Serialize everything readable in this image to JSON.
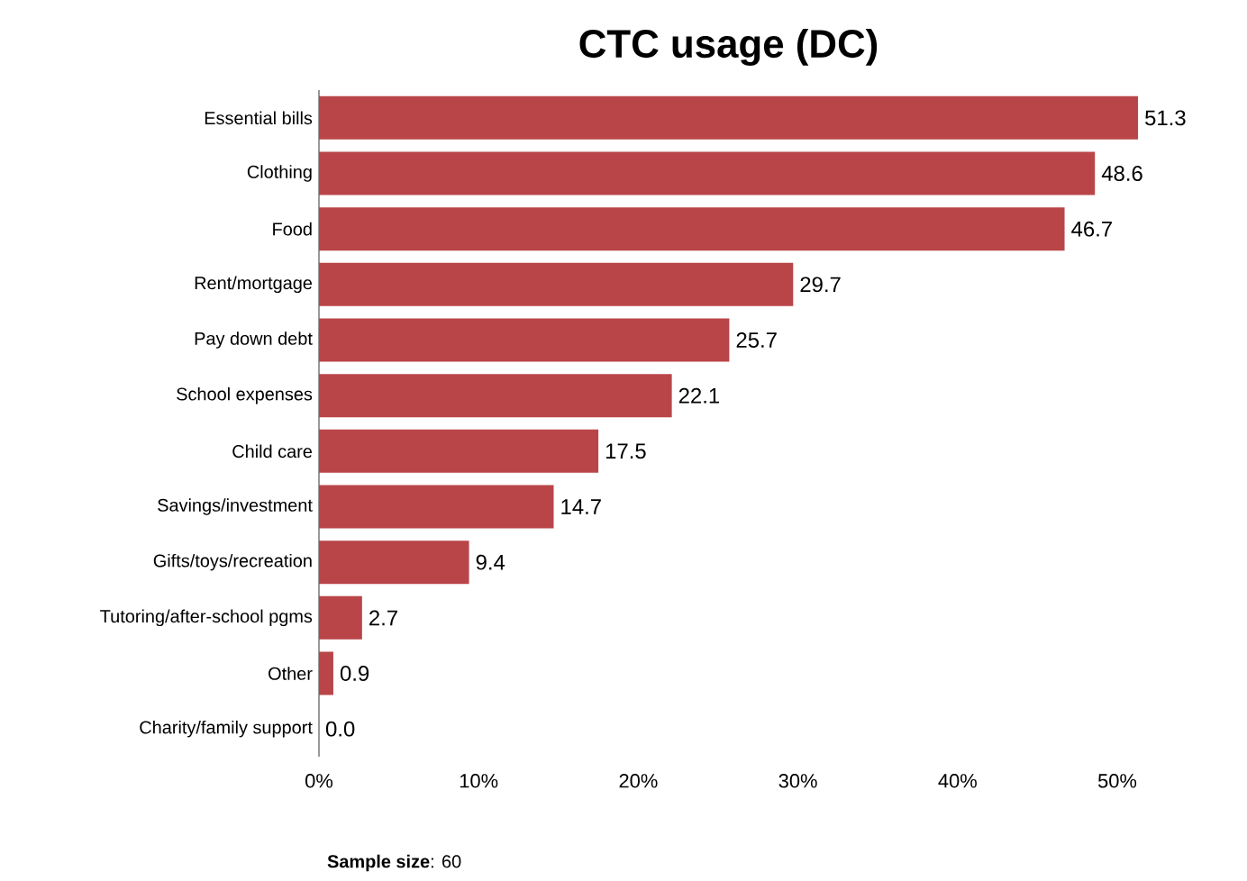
{
  "chart_data": {
    "type": "bar",
    "orientation": "horizontal",
    "title": "CTC usage (DC)",
    "categories": [
      "Essential bills",
      "Clothing",
      "Food",
      "Rent/mortgage",
      "Pay down debt",
      "School expenses",
      "Child care",
      "Savings/investment",
      "Gifts/toys/recreation",
      "Tutoring/after-school pgms",
      "Other",
      "Charity/family support"
    ],
    "values": [
      51.3,
      48.6,
      46.7,
      29.7,
      25.7,
      22.1,
      17.5,
      14.7,
      9.4,
      2.7,
      0.9,
      0.0
    ],
    "value_labels": [
      "51.3",
      "48.6",
      "46.7",
      "29.7",
      "25.7",
      "22.1",
      "17.5",
      "14.7",
      "9.4",
      "2.7",
      "0.9",
      "0.0"
    ],
    "color": "#b94548",
    "grid": false,
    "xlim": [
      0,
      51.3
    ],
    "xticks": [
      {
        "value": 0,
        "label": "0%"
      },
      {
        "value": 10,
        "label": "10%"
      },
      {
        "value": 20,
        "label": "20%"
      },
      {
        "value": 30,
        "label": "30%"
      },
      {
        "value": 40,
        "label": "40%"
      },
      {
        "value": 50,
        "label": "50%"
      }
    ],
    "annotations": [
      "**Sample size**: 60"
    ]
  }
}
